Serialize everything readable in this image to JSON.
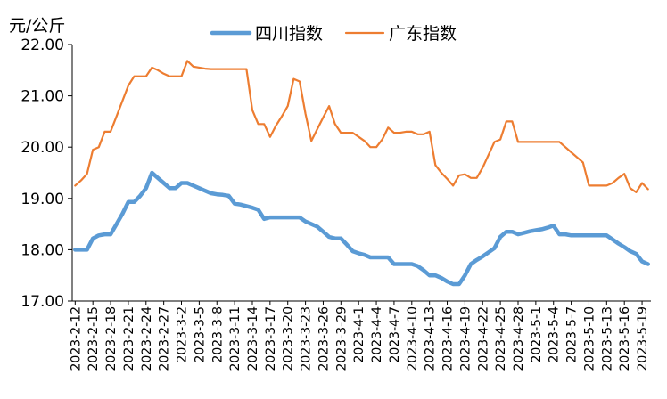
{
  "chart_data": {
    "type": "line",
    "ylabel": "元/公斤",
    "ylim": [
      17.0,
      22.0
    ],
    "ytick_step": 1.0,
    "ytick_labels": [
      "17.00",
      "18.00",
      "19.00",
      "20.00",
      "21.00",
      "22.00"
    ],
    "grid": false,
    "legend_position": "top",
    "x_tick_labels": [
      "2023-2-12",
      "2023-2-15",
      "2023-2-18",
      "2023-2-21",
      "2023-2-24",
      "2023-2-27",
      "2023-3-2",
      "2023-3-5",
      "2023-3-8",
      "2023-3-11",
      "2023-3-14",
      "2023-3-17",
      "2023-3-20",
      "2023-3-23",
      "2023-3-26",
      "2023-3-29",
      "2023-4-1",
      "2023-4-4",
      "2023-4-7",
      "2023-4-10",
      "2023-4-13",
      "2023-4-16",
      "2023-4-19",
      "2023-4-22",
      "2023-4-25",
      "2023-4-28",
      "2023-5-1",
      "2023-5-4",
      "2023-5-7",
      "2023-5-10",
      "2023-5-13",
      "2023-5-16",
      "2023-5-19"
    ],
    "x": [
      "2023-2-12",
      "2023-2-13",
      "2023-2-14",
      "2023-2-15",
      "2023-2-16",
      "2023-2-17",
      "2023-2-18",
      "2023-2-19",
      "2023-2-20",
      "2023-2-21",
      "2023-2-22",
      "2023-2-23",
      "2023-2-24",
      "2023-2-25",
      "2023-2-26",
      "2023-2-27",
      "2023-2-28",
      "2023-3-1",
      "2023-3-2",
      "2023-3-3",
      "2023-3-4",
      "2023-3-5",
      "2023-3-6",
      "2023-3-7",
      "2023-3-8",
      "2023-3-9",
      "2023-3-10",
      "2023-3-11",
      "2023-3-12",
      "2023-3-13",
      "2023-3-14",
      "2023-3-15",
      "2023-3-16",
      "2023-3-17",
      "2023-3-18",
      "2023-3-19",
      "2023-3-20",
      "2023-3-21",
      "2023-3-22",
      "2023-3-23",
      "2023-3-24",
      "2023-3-25",
      "2023-3-26",
      "2023-3-27",
      "2023-3-28",
      "2023-3-29",
      "2023-3-30",
      "2023-3-31",
      "2023-4-1",
      "2023-4-2",
      "2023-4-3",
      "2023-4-4",
      "2023-4-5",
      "2023-4-6",
      "2023-4-7",
      "2023-4-8",
      "2023-4-9",
      "2023-4-10",
      "2023-4-11",
      "2023-4-12",
      "2023-4-13",
      "2023-4-14",
      "2023-4-15",
      "2023-4-16",
      "2023-4-17",
      "2023-4-18",
      "2023-4-19",
      "2023-4-20",
      "2023-4-21",
      "2023-4-22",
      "2023-4-23",
      "2023-4-24",
      "2023-4-25",
      "2023-4-26",
      "2023-4-27",
      "2023-4-28",
      "2023-4-29",
      "2023-4-30",
      "2023-5-1",
      "2023-5-2",
      "2023-5-3",
      "2023-5-4",
      "2023-5-5",
      "2023-5-6",
      "2023-5-7",
      "2023-5-8",
      "2023-5-9",
      "2023-5-10",
      "2023-5-11",
      "2023-5-12",
      "2023-5-13",
      "2023-5-14",
      "2023-5-15",
      "2023-5-16",
      "2023-5-17",
      "2023-5-18",
      "2023-5-19",
      "2023-5-20"
    ],
    "series": [
      {
        "name": "四川指数",
        "color": "#5b9bd5",
        "stroke": "thick",
        "values": [
          18.0,
          18.0,
          18.0,
          18.22,
          18.28,
          18.3,
          18.3,
          18.5,
          18.7,
          18.93,
          18.93,
          19.05,
          19.2,
          19.5,
          19.4,
          19.3,
          19.2,
          19.2,
          19.3,
          19.3,
          19.25,
          19.2,
          19.15,
          19.1,
          19.08,
          19.07,
          19.05,
          18.9,
          18.88,
          18.85,
          18.82,
          18.78,
          18.6,
          18.63,
          18.63,
          18.63,
          18.63,
          18.63,
          18.63,
          18.55,
          18.5,
          18.45,
          18.35,
          18.25,
          18.22,
          18.22,
          18.1,
          17.97,
          17.93,
          17.9,
          17.85,
          17.85,
          17.85,
          17.85,
          17.72,
          17.72,
          17.72,
          17.72,
          17.68,
          17.6,
          17.5,
          17.5,
          17.45,
          17.38,
          17.33,
          17.33,
          17.5,
          17.72,
          17.8,
          17.87,
          17.95,
          18.03,
          18.25,
          18.35,
          18.35,
          18.3,
          18.33,
          18.36,
          18.38,
          18.4,
          18.43,
          18.47,
          18.3,
          18.3,
          18.28,
          18.28,
          18.28,
          18.28,
          18.28,
          18.28,
          18.28,
          18.2,
          18.12,
          18.05,
          17.97,
          17.92,
          17.77,
          17.72
        ]
      },
      {
        "name": "广东指数",
        "color": "#ed7d31",
        "stroke": "thin",
        "values": [
          19.25,
          19.35,
          19.48,
          19.95,
          20.0,
          20.3,
          20.3,
          20.6,
          20.9,
          21.2,
          21.38,
          21.38,
          21.38,
          21.55,
          21.5,
          21.43,
          21.38,
          21.38,
          21.38,
          21.68,
          21.57,
          21.55,
          21.53,
          21.52,
          21.52,
          21.52,
          21.52,
          21.52,
          21.52,
          21.52,
          20.72,
          20.45,
          20.45,
          20.2,
          20.42,
          20.6,
          20.8,
          21.33,
          21.28,
          20.65,
          20.12,
          20.35,
          20.58,
          20.8,
          20.45,
          20.28,
          20.28,
          20.28,
          20.2,
          20.12,
          20.0,
          20.0,
          20.15,
          20.38,
          20.28,
          20.28,
          20.3,
          20.3,
          20.25,
          20.25,
          20.3,
          19.65,
          19.5,
          19.38,
          19.25,
          19.45,
          19.47,
          19.4,
          19.4,
          19.6,
          19.85,
          20.1,
          20.15,
          20.5,
          20.5,
          20.1,
          20.1,
          20.1,
          20.1,
          20.1,
          20.1,
          20.1,
          20.1,
          20.0,
          19.9,
          19.8,
          19.7,
          19.25,
          19.25,
          19.25,
          19.25,
          19.3,
          19.4,
          19.48,
          19.2,
          19.12,
          19.3,
          19.18
        ]
      }
    ]
  }
}
